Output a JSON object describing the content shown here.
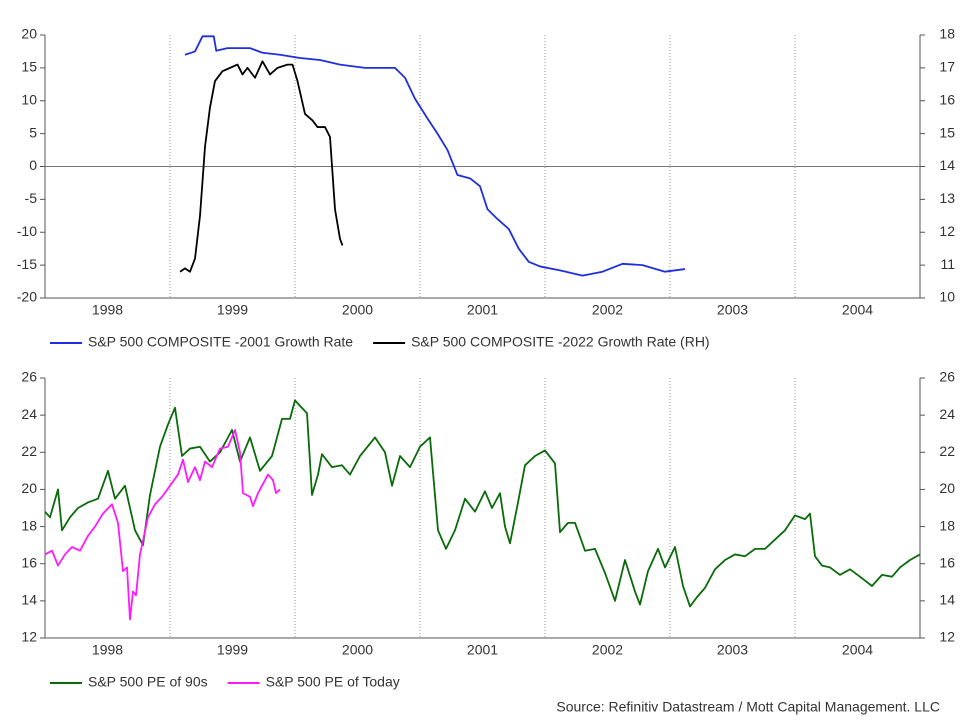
{
  "chart_data": [
    {
      "type": "line",
      "xlim": [
        1998,
        2005
      ],
      "xticks": [
        {
          "value": 1998.5,
          "label": "1998"
        },
        {
          "value": 1999.5,
          "label": "1999"
        },
        {
          "value": 2000.5,
          "label": "2000"
        },
        {
          "value": 2001.5,
          "label": "2001"
        },
        {
          "value": 2002.5,
          "label": "2002"
        },
        {
          "value": 2003.5,
          "label": "2003"
        },
        {
          "value": 2004.5,
          "label": "2004"
        }
      ],
      "x_gridlines": [
        1999,
        2000,
        2001,
        2002,
        2003,
        2004
      ],
      "ylim": [
        -20,
        20
      ],
      "yticks": [
        -20,
        -15,
        -10,
        -5,
        0,
        5,
        10,
        15,
        20
      ],
      "y2lim": [
        10,
        18
      ],
      "y2ticks": [
        10,
        11,
        12,
        13,
        14,
        15,
        16,
        17,
        18
      ],
      "zero_line": true,
      "series": [
        {
          "name": "S&P 500 COMPOSITE -2001 Growth Rate",
          "color": "#1f2fe0",
          "x": [
            1999.12,
            1999.2,
            1999.26,
            1999.35,
            1999.37,
            1999.46,
            1999.64,
            1999.74,
            1999.88,
            2000.04,
            2000.2,
            2000.36,
            2000.56,
            2000.8,
            2000.88,
            2000.96,
            2001.06,
            2001.14,
            2001.22,
            2001.3,
            2001.4,
            2001.48,
            2001.54,
            2001.62,
            2001.71,
            2001.79,
            2001.87,
            2001.96,
            2002.12,
            2002.3,
            2002.46,
            2002.62,
            2002.78,
            2002.96,
            2003.12
          ],
          "values": [
            17,
            17.5,
            19.8,
            19.8,
            17.6,
            18,
            18,
            17.3,
            17,
            16.5,
            16.2,
            15.5,
            15,
            15,
            13.5,
            10.3,
            7.3,
            5,
            2.5,
            -1.3,
            -1.8,
            -3,
            -6.5,
            -8,
            -9.5,
            -12.5,
            -14.5,
            -15.2,
            -15.8,
            -16.6,
            -16,
            -14.8,
            -15,
            -16,
            -15.6
          ]
        },
        {
          "name": "S&P 500 COMPOSITE -2022 Growth Rate (RH)",
          "color": "#000000",
          "axis": "y2",
          "x": [
            1999.08,
            1999.12,
            1999.16,
            1999.2,
            1999.24,
            1999.28,
            1999.32,
            1999.36,
            1999.42,
            1999.48,
            1999.54,
            1999.58,
            1999.62,
            1999.68,
            1999.74,
            1999.8,
            1999.86,
            1999.94,
            1999.98,
            2000.02,
            2000.08,
            2000.14,
            2000.18,
            2000.24,
            2000.28,
            2000.32,
            2000.36,
            2000.38
          ],
          "values": [
            10.8,
            10.9,
            10.8,
            11.2,
            12.5,
            14.6,
            15.8,
            16.6,
            16.9,
            17,
            17.1,
            16.8,
            17,
            16.7,
            17.2,
            16.8,
            17,
            17.1,
            17.1,
            16.6,
            15.6,
            15.4,
            15.2,
            15.2,
            14.9,
            12.7,
            11.8,
            11.6
          ]
        }
      ]
    },
    {
      "type": "line",
      "xlim": [
        1998,
        2005
      ],
      "xticks": [
        {
          "value": 1998.5,
          "label": "1998"
        },
        {
          "value": 1999.5,
          "label": "1999"
        },
        {
          "value": 2000.5,
          "label": "2000"
        },
        {
          "value": 2001.5,
          "label": "2001"
        },
        {
          "value": 2002.5,
          "label": "2002"
        },
        {
          "value": 2003.5,
          "label": "2003"
        },
        {
          "value": 2004.5,
          "label": "2004"
        }
      ],
      "x_gridlines": [
        1999,
        2000,
        2001,
        2002,
        2003,
        2004
      ],
      "ylim": [
        12,
        26
      ],
      "yticks": [
        12,
        14,
        16,
        18,
        20,
        22,
        24,
        26
      ],
      "y2lim": [
        12,
        26
      ],
      "y2ticks": [
        12,
        14,
        16,
        18,
        20,
        22,
        24,
        26
      ],
      "zero_line": false,
      "series": [
        {
          "name": "S&P 500 PE of 90s",
          "color": "#0a6b0a",
          "x": [
            1998.0,
            1998.04,
            1998.104,
            1998.136,
            1998.2,
            1998.264,
            1998.344,
            1998.424,
            1998.504,
            1998.56,
            1998.64,
            1998.72,
            1998.784,
            1998.84,
            1998.92,
            1998.984,
            1999.04,
            1999.096,
            1999.16,
            1999.24,
            1999.32,
            1999.4,
            1999.496,
            1999.56,
            1999.64,
            1999.72,
            1999.816,
            1999.896,
            1999.96,
            2000.0,
            2000.04,
            2000.096,
            2000.136,
            2000.184,
            2000.216,
            2000.296,
            2000.376,
            2000.44,
            2000.52,
            2000.64,
            2000.72,
            2000.776,
            2000.84,
            2000.92,
            2001.0,
            2001.08,
            2001.144,
            2001.208,
            2001.28,
            2001.36,
            2001.44,
            2001.52,
            2001.576,
            2001.64,
            2001.68,
            2001.72,
            2001.784,
            2001.84,
            2001.92,
            2002.0,
            2002.08,
            2002.12,
            2002.184,
            2002.24,
            2002.32,
            2002.4,
            2002.48,
            2002.56,
            2002.64,
            2002.72,
            2002.76,
            2002.824,
            2002.904,
            2002.96,
            2003.04,
            2003.104,
            2003.16,
            2003.216,
            2003.28,
            2003.36,
            2003.44,
            2003.52,
            2003.6,
            2003.68,
            2003.76,
            2003.84,
            2003.92,
            2004.0,
            2004.08,
            2004.12,
            2004.16,
            2004.216,
            2004.28,
            2004.36,
            2004.44,
            2004.52,
            2004.616,
            2004.696,
            2004.776,
            2004.84,
            2004.92,
            2005.0
          ],
          "values": [
            18.8,
            18.5,
            20,
            17.8,
            18.5,
            19,
            19.3,
            19.5,
            21,
            19.5,
            20.2,
            17.8,
            17,
            19.7,
            22.3,
            23.5,
            24.4,
            21.8,
            22.2,
            22.3,
            21.5,
            22,
            23.2,
            21.5,
            22.8,
            21,
            21.8,
            23.8,
            23.8,
            24.8,
            24.5,
            24.1,
            19.7,
            20.8,
            21.9,
            21.2,
            21.3,
            20.8,
            21.8,
            22.8,
            22,
            20.2,
            21.8,
            21.2,
            22.3,
            22.8,
            17.8,
            16.8,
            17.8,
            19.5,
            18.8,
            19.9,
            19,
            19.8,
            18,
            17.1,
            19.3,
            21.3,
            21.8,
            22.1,
            21.4,
            17.7,
            18.2,
            18.2,
            16.7,
            16.8,
            15.5,
            14,
            16.2,
            14.5,
            13.8,
            15.6,
            16.8,
            15.8,
            16.9,
            14.8,
            13.7,
            14.2,
            14.7,
            15.7,
            16.2,
            16.5,
            16.4,
            16.8,
            16.8,
            17.3,
            17.8,
            18.6,
            18.4,
            18.7,
            16.4,
            15.9,
            15.8,
            15.4,
            15.7,
            15.3,
            14.8,
            15.4,
            15.3,
            15.8,
            16.2,
            16.5
          ]
        },
        {
          "name": "S&P 500 PE of Today",
          "color": "#ff1aff",
          "x": [
            1998.0,
            1998.056,
            1998.104,
            1998.16,
            1998.216,
            1998.28,
            1998.344,
            1998.4,
            1998.464,
            1998.536,
            1998.584,
            1998.624,
            1998.656,
            1998.68,
            1998.704,
            1998.728,
            1998.76,
            1998.824,
            1998.88,
            1998.936,
            1999.0,
            1999.064,
            1999.104,
            1999.144,
            1999.2,
            1999.24,
            1999.28,
            1999.336,
            1999.4,
            1999.464,
            1999.52,
            1999.56,
            1999.584,
            1999.64,
            1999.664,
            1999.704,
            1999.744,
            1999.784,
            1999.824,
            1999.848,
            1999.88
          ],
          "values": [
            16.5,
            16.7,
            15.9,
            16.5,
            16.9,
            16.7,
            17.5,
            18,
            18.7,
            19.2,
            18.2,
            15.6,
            15.8,
            13,
            14.5,
            14.3,
            16.5,
            18.5,
            19.2,
            19.6,
            20.2,
            20.8,
            21.6,
            20.4,
            21.2,
            20.5,
            21.5,
            21.2,
            22.2,
            22.3,
            23.2,
            22,
            19.8,
            19.6,
            19.1,
            19.8,
            20.3,
            20.8,
            20.5,
            19.8,
            20
          ]
        }
      ]
    }
  ],
  "source": "Source: Refinitiv Datastream / Mott Capital Management. LLC"
}
